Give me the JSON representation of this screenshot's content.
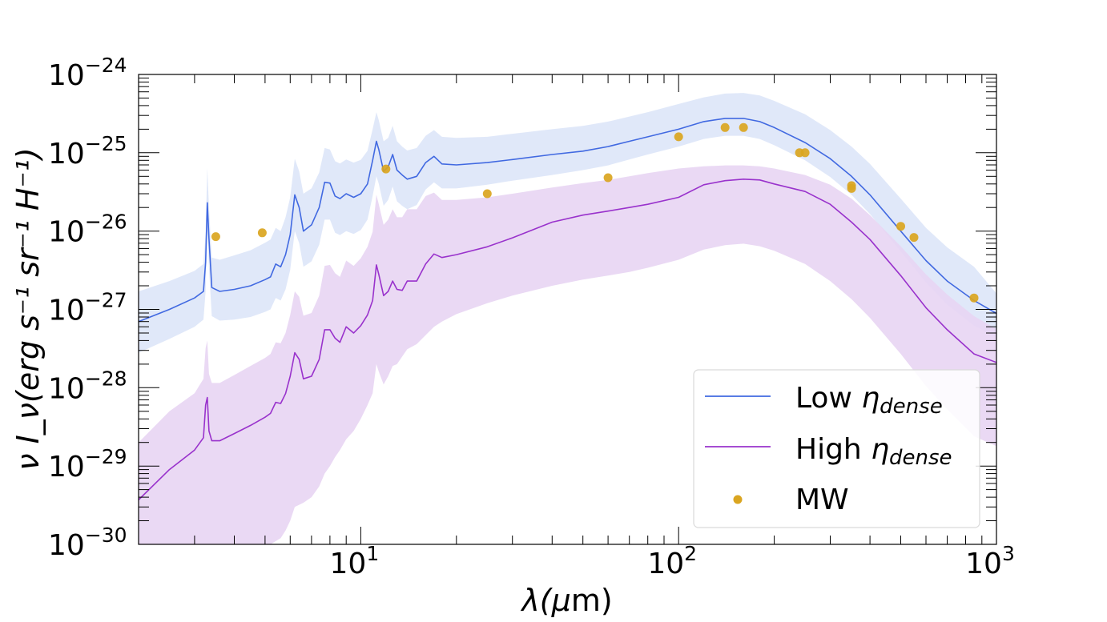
{
  "chart_data": {
    "type": "line",
    "xscale": "log",
    "yscale": "log",
    "xlim": [
      2,
      1000
    ],
    "ylim": [
      1e-30,
      1e-24
    ],
    "xlabel": {
      "base": "λ(",
      "mu": "μ",
      "rest": "m)"
    },
    "ylabel": "ν I_ν(erg s⁻¹ sr⁻¹ H⁻¹)",
    "x_ticks": [
      {
        "value": 10,
        "base": "10",
        "exp": "1"
      },
      {
        "value": 100,
        "base": "10",
        "exp": "2"
      },
      {
        "value": 1000,
        "base": "10",
        "exp": "3"
      }
    ],
    "y_ticks": [
      {
        "value": 1e-30,
        "base": "10",
        "exp": "−30"
      },
      {
        "value": 1e-29,
        "base": "10",
        "exp": "−29"
      },
      {
        "value": 1e-28,
        "base": "10",
        "exp": "−28"
      },
      {
        "value": 1e-27,
        "base": "10",
        "exp": "−27"
      },
      {
        "value": 1e-26,
        "base": "10",
        "exp": "−26"
      },
      {
        "value": 1e-25,
        "base": "10",
        "exp": "−25"
      },
      {
        "value": 1e-24,
        "base": "10",
        "exp": "−24"
      }
    ],
    "legend": {
      "position": "lower-right",
      "entries": [
        {
          "key": "low",
          "label_main": "Low ",
          "label_eta": "η",
          "label_sub": "dense",
          "kind": "line"
        },
        {
          "key": "high",
          "label_main": "High ",
          "label_eta": "η",
          "label_sub": "dense",
          "kind": "line"
        },
        {
          "key": "mw",
          "label_main": "MW",
          "label_eta": "",
          "label_sub": "",
          "kind": "marker"
        }
      ]
    },
    "series": [
      {
        "name": "Low η_dense",
        "key": "low",
        "color": "#4169e1",
        "band_color": "#dde6f8",
        "x": [
          2.0,
          2.5,
          3.0,
          3.2,
          3.25,
          3.29,
          3.33,
          3.4,
          3.6,
          4.0,
          4.5,
          5.0,
          5.2,
          5.4,
          5.6,
          5.8,
          6.0,
          6.2,
          6.4,
          6.6,
          7.0,
          7.4,
          7.7,
          8.0,
          8.3,
          8.6,
          9.0,
          9.5,
          10.0,
          10.5,
          10.9,
          11.2,
          11.4,
          11.8,
          12.2,
          12.6,
          13.0,
          13.5,
          14.0,
          15.0,
          16.0,
          17.0,
          18.0,
          20.0,
          25.0,
          30.0,
          40.0,
          50.0,
          60.0,
          70.0,
          80.0,
          100.0,
          120.0,
          140.0,
          160.0,
          180.0,
          200.0,
          250.0,
          300.0,
          350.0,
          400.0,
          500.0,
          600.0,
          700.0,
          850.0,
          1000.0
        ],
        "values": [
          7e-28,
          1e-27,
          1.4e-27,
          1.7e-27,
          4e-27,
          2.3e-26,
          8e-27,
          1.9e-27,
          1.7e-27,
          1.8e-27,
          2e-27,
          2.4e-27,
          2.6e-27,
          3.8e-27,
          3.5e-27,
          5e-27,
          9e-27,
          2.9e-26,
          2e-26,
          1e-26,
          1.2e-26,
          2e-26,
          4.2e-26,
          4.1e-26,
          2.8e-26,
          2.6e-26,
          3e-26,
          2.7e-26,
          3e-26,
          4e-26,
          8e-26,
          1.4e-25,
          1.1e-25,
          5.8e-26,
          6.6e-26,
          9.5e-26,
          6e-26,
          5.2e-26,
          4.6e-26,
          5e-26,
          7.5e-26,
          9e-26,
          7.2e-26,
          7e-26,
          7.5e-26,
          8.2e-26,
          9.5e-26,
          1.05e-25,
          1.2e-25,
          1.4e-25,
          1.6e-25,
          2e-25,
          2.5e-25,
          2.75e-25,
          2.75e-25,
          2.5e-25,
          2.1e-25,
          1.35e-25,
          8.4e-26,
          5e-26,
          2.9e-26,
          1e-26,
          4.2e-27,
          2.3e-27,
          1.3e-27,
          8.9e-28
        ],
        "upper": [
          1.7e-27,
          2.3e-27,
          3.1e-27,
          3.8e-27,
          1e-26,
          6.4e-26,
          2e-26,
          4.6e-27,
          4.3e-27,
          4.9e-27,
          5.7e-27,
          7.1e-27,
          7.8e-27,
          1.1e-26,
          1e-26,
          1.5e-26,
          2.7e-26,
          8.4e-26,
          5.8e-26,
          3e-26,
          3.5e-26,
          5.6e-26,
          1.15e-25,
          1.1e-25,
          7.8e-26,
          7.3e-26,
          8.2e-26,
          7.5e-26,
          8.1e-26,
          1.06e-25,
          2e-25,
          3.3e-25,
          2.6e-25,
          1.4e-25,
          1.55e-25,
          2.2e-25,
          1.4e-25,
          1.2e-25,
          1.07e-25,
          1.15e-25,
          1.65e-25,
          1.95e-25,
          1.6e-25,
          1.55e-25,
          1.6e-25,
          1.75e-25,
          2e-25,
          2.2e-25,
          2.5e-25,
          2.9e-25,
          3.3e-25,
          4.2e-25,
          5.1e-25,
          5.7e-25,
          5.8e-25,
          5.4e-25,
          4.6e-25,
          3.1e-25,
          1.95e-25,
          1.2e-25,
          7.2e-26,
          2.6e-26,
          1.1e-26,
          6.2e-27,
          3.5e-27,
          1.6e-27
        ],
        "lower": [
          2.8e-28,
          4.2e-28,
          6e-28,
          7.4e-28,
          1.7e-27,
          1e-26,
          3.4e-27,
          8.2e-28,
          7.2e-28,
          7.4e-28,
          8e-28,
          9.3e-28,
          1e-27,
          1.4e-27,
          1.3e-27,
          1.8e-27,
          3.2e-27,
          1e-26,
          7e-27,
          3.5e-27,
          4.1e-27,
          6.7e-27,
          1.4e-26,
          1.4e-26,
          9.5e-27,
          8.9e-27,
          1e-26,
          9.2e-27,
          1.03e-26,
          1.4e-26,
          2.8e-26,
          5e-26,
          4e-26,
          2.1e-26,
          2.5e-26,
          3.7e-26,
          2.4e-26,
          2.1e-26,
          1.9e-26,
          2.15e-26,
          3.4e-26,
          4.2e-26,
          3.5e-26,
          3.5e-26,
          3.9e-26,
          4.4e-26,
          5.2e-26,
          6e-26,
          6.9e-26,
          8.2e-26,
          9.5e-26,
          1.2e-25,
          1.5e-25,
          1.65e-25,
          1.65e-25,
          1.5e-25,
          1.25e-25,
          8e-26,
          4.9e-26,
          2.9e-26,
          1.65e-26,
          5.5e-27,
          2.2e-27,
          1.15e-27,
          6.2e-28,
          4.4e-28
        ]
      },
      {
        "name": "High η_dense",
        "key": "high",
        "color": "#9932cc",
        "band_color": "#e8d5f3",
        "x": [
          2.0,
          2.5,
          3.0,
          3.2,
          3.25,
          3.29,
          3.33,
          3.4,
          3.6,
          4.0,
          4.5,
          5.0,
          5.2,
          5.4,
          5.6,
          5.8,
          6.0,
          6.2,
          6.4,
          6.6,
          7.0,
          7.4,
          7.7,
          8.0,
          8.3,
          8.6,
          9.0,
          9.5,
          10.0,
          10.5,
          10.9,
          11.2,
          11.4,
          11.8,
          12.2,
          12.6,
          13.0,
          13.5,
          14.0,
          15.0,
          16.0,
          17.0,
          18.0,
          20.0,
          25.0,
          30.0,
          40.0,
          50.0,
          60.0,
          70.0,
          80.0,
          100.0,
          120.0,
          140.0,
          160.0,
          180.0,
          200.0,
          250.0,
          300.0,
          350.0,
          400.0,
          500.0,
          600.0,
          700.0,
          850.0,
          1000.0
        ],
        "values": [
          3.7e-30,
          9e-30,
          1.6e-29,
          2.3e-29,
          6e-29,
          7.5e-29,
          2.8e-29,
          2.1e-29,
          2.1e-29,
          2.6e-29,
          3.3e-29,
          4.2e-29,
          4.7e-29,
          6.5e-29,
          6.3e-29,
          8.4e-29,
          1.4e-28,
          2.8e-28,
          2.3e-28,
          1.3e-28,
          1.4e-28,
          2.3e-28,
          5.5e-28,
          5.5e-28,
          4.3e-28,
          3.8e-28,
          6e-28,
          5e-28,
          6.2e-28,
          8.5e-28,
          1.3e-27,
          3.7e-27,
          2.8e-27,
          1.5e-27,
          1.7e-27,
          2.3e-27,
          1.8e-27,
          1.75e-27,
          2.3e-27,
          2.3e-27,
          3.8e-27,
          5.1e-27,
          4.6e-27,
          5e-27,
          6.3e-27,
          8.2e-27,
          1.3e-26,
          1.6e-26,
          1.8e-26,
          2e-26,
          2.2e-26,
          2.7e-26,
          3.9e-26,
          4.4e-26,
          4.6e-26,
          4.5e-26,
          4e-26,
          3.2e-26,
          2.2e-26,
          1.3e-26,
          7.8e-27,
          2.7e-27,
          1.05e-27,
          5.5e-28,
          2.7e-28,
          2.1e-28
        ],
        "upper": [
          2e-29,
          5e-29,
          8.5e-29,
          1.3e-28,
          3.2e-28,
          4e-28,
          1.5e-28,
          1.15e-28,
          1.15e-28,
          1.45e-28,
          1.9e-28,
          2.4e-28,
          2.7e-28,
          3.8e-28,
          3.7e-28,
          5e-28,
          8.5e-28,
          1.7e-27,
          1.45e-27,
          8.3e-28,
          9e-28,
          1.5e-27,
          3.6e-27,
          3.7e-27,
          2.9e-27,
          2.6e-27,
          4.2e-27,
          3.6e-27,
          4.5e-27,
          6.3e-27,
          9.8e-27,
          2.9e-26,
          2.2e-26,
          1.2e-26,
          1.4e-26,
          1.9e-26,
          1.5e-26,
          1.5e-26,
          1.9e-26,
          1.9e-26,
          2.8e-26,
          3.1e-26,
          2.5e-26,
          2.5e-26,
          2.7e-26,
          3e-26,
          3.6e-26,
          4.1e-26,
          4.5e-26,
          5e-26,
          5.5e-26,
          6.3e-26,
          6.7e-26,
          6.9e-26,
          6.9e-26,
          6.7e-26,
          6.3e-26,
          5.2e-26,
          3.9e-26,
          2.6e-26,
          1.6e-26,
          6.4e-27,
          2.8e-27,
          1.55e-27,
          8.2e-28,
          5.6e-28
        ],
        "lower": [
          1e-30,
          1e-30,
          1e-30,
          1e-30,
          1e-30,
          1e-30,
          1e-30,
          1e-30,
          1e-30,
          1e-30,
          1e-30,
          1e-30,
          1e-30,
          1.1e-30,
          1.2e-30,
          1.5e-30,
          2e-30,
          3e-30,
          3.2e-30,
          3.4e-30,
          4e-30,
          5.5e-30,
          8e-30,
          1e-29,
          1.3e-29,
          1.6e-29,
          2.2e-29,
          2.8e-29,
          4e-29,
          6e-29,
          8.5e-29,
          2e-28,
          1.6e-28,
          1.1e-28,
          1.4e-28,
          1.9e-28,
          2e-28,
          2.5e-28,
          3.1e-28,
          3.6e-28,
          4.7e-28,
          6e-28,
          7e-28,
          8.7e-28,
          1.2e-27,
          1.5e-27,
          2e-27,
          2.4e-27,
          2.7e-27,
          3e-27,
          3.4e-27,
          4.3e-27,
          5.8e-27,
          6.6e-27,
          6.9e-27,
          6.4e-27,
          5.6e-27,
          3.8e-27,
          2.3e-27,
          1.35e-27,
          7.8e-28,
          2.7e-28,
          1.05e-28,
          5.3e-29,
          2.4e-29,
          1.8e-29
        ]
      }
    ],
    "points": {
      "name": "MW",
      "color": "#daa520",
      "x": [
        3.5,
        4.9,
        12.0,
        25.0,
        60.0,
        100.0,
        140.0,
        160.0,
        240.0,
        250.0,
        350.0,
        350.0,
        500.0,
        550.0,
        850.0
      ],
      "values": [
        8.5e-27,
        9.5e-27,
        6.2e-26,
        3e-26,
        4.8e-26,
        1.6e-25,
        2.1e-25,
        2.1e-25,
        1e-25,
        1e-25,
        3.8e-26,
        3.5e-26,
        1.15e-26,
        8.3e-27,
        1.4e-27
      ]
    }
  }
}
